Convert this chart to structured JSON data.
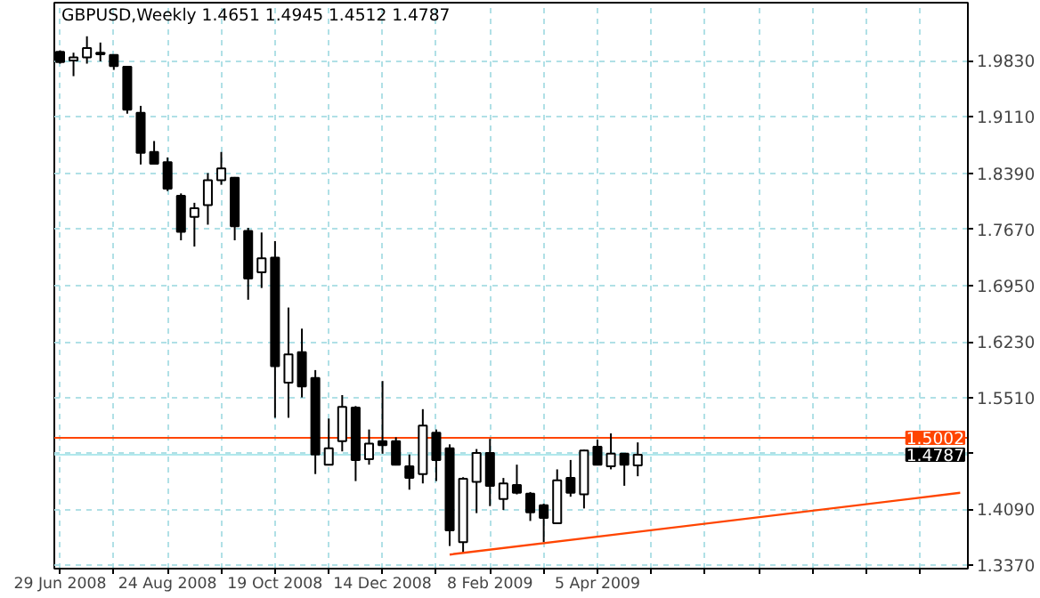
{
  "chart_data": {
    "type": "candlestick",
    "title": "GBPUSD,Weekly  1.4651 1.4945 1.4512 1.4787",
    "x": [
      "2008-06-29",
      "2008-07-06",
      "2008-07-13",
      "2008-07-20",
      "2008-07-27",
      "2008-08-03",
      "2008-08-10",
      "2008-08-17",
      "2008-08-24",
      "2008-08-31",
      "2008-09-07",
      "2008-09-14",
      "2008-09-21",
      "2008-09-28",
      "2008-10-05",
      "2008-10-12",
      "2008-10-19",
      "2008-10-26",
      "2008-11-02",
      "2008-11-09",
      "2008-11-16",
      "2008-11-23",
      "2008-11-30",
      "2008-12-07",
      "2008-12-14",
      "2008-12-21",
      "2008-12-28",
      "2009-01-04",
      "2009-01-11",
      "2009-01-18",
      "2009-01-25",
      "2009-02-01",
      "2009-02-08",
      "2009-02-15",
      "2009-02-22",
      "2009-03-01",
      "2009-03-08",
      "2009-03-15",
      "2009-03-22",
      "2009-03-29",
      "2009-04-05",
      "2009-04-12",
      "2009-04-19",
      "2009-04-26"
    ],
    "ohlc": [
      [
        1.994,
        1.996,
        1.979,
        1.981
      ],
      [
        1.983,
        1.993,
        1.963,
        1.987
      ],
      [
        1.987,
        2.014,
        1.979,
        1.999
      ],
      [
        1.993,
        2.006,
        1.982,
        1.991
      ],
      [
        1.99,
        1.991,
        1.971,
        1.976
      ],
      [
        1.975,
        1.976,
        1.915,
        1.92
      ],
      [
        1.916,
        1.925,
        1.85,
        1.865
      ],
      [
        1.866,
        1.88,
        1.85,
        1.851
      ],
      [
        1.853,
        1.859,
        1.816,
        1.819
      ],
      [
        1.81,
        1.813,
        1.753,
        1.764
      ],
      [
        1.783,
        1.801,
        1.745,
        1.794
      ],
      [
        1.798,
        1.839,
        1.773,
        1.83
      ],
      [
        1.83,
        1.866,
        1.824,
        1.845
      ],
      [
        1.833,
        1.834,
        1.753,
        1.771
      ],
      [
        1.765,
        1.769,
        1.677,
        1.704
      ],
      [
        1.712,
        1.763,
        1.692,
        1.73
      ],
      [
        1.731,
        1.752,
        1.526,
        1.592
      ],
      [
        1.571,
        1.667,
        1.526,
        1.607
      ],
      [
        1.61,
        1.64,
        1.552,
        1.566
      ],
      [
        1.577,
        1.587,
        1.454,
        1.479
      ],
      [
        1.466,
        1.525,
        1.465,
        1.487
      ],
      [
        1.496,
        1.555,
        1.483,
        1.54
      ],
      [
        1.539,
        1.541,
        1.445,
        1.472
      ],
      [
        1.473,
        1.511,
        1.466,
        1.493
      ],
      [
        1.496,
        1.573,
        1.48,
        1.491
      ],
      [
        1.496,
        1.501,
        1.465,
        1.466
      ],
      [
        1.464,
        1.479,
        1.434,
        1.449
      ],
      [
        1.454,
        1.537,
        1.442,
        1.516
      ],
      [
        1.507,
        1.511,
        1.445,
        1.472
      ],
      [
        1.487,
        1.492,
        1.362,
        1.382
      ],
      [
        1.367,
        1.45,
        1.353,
        1.448
      ],
      [
        1.444,
        1.486,
        1.404,
        1.481
      ],
      [
        1.481,
        1.499,
        1.413,
        1.439
      ],
      [
        1.422,
        1.449,
        1.408,
        1.442
      ],
      [
        1.44,
        1.466,
        1.428,
        1.43
      ],
      [
        1.429,
        1.431,
        1.394,
        1.405
      ],
      [
        1.414,
        1.416,
        1.367,
        1.398
      ],
      [
        1.391,
        1.46,
        1.39,
        1.446
      ],
      [
        1.449,
        1.472,
        1.425,
        1.43
      ],
      [
        1.428,
        1.485,
        1.41,
        1.484
      ],
      [
        1.489,
        1.498,
        1.465,
        1.466
      ],
      [
        1.464,
        1.506,
        1.46,
        1.48
      ],
      [
        1.48,
        1.481,
        1.439,
        1.466
      ],
      [
        1.4651,
        1.4945,
        1.4512,
        1.4787
      ]
    ],
    "series": [
      {
        "type": "line",
        "x": [
          "2009-01-18",
          "2009-10-11"
        ],
        "values": [
          1.351,
          1.43
        ],
        "color": "#ff4500"
      }
    ],
    "xlim": [
      "2008-06-26",
      "2009-10-15"
    ],
    "xticks": [
      {
        "value": "2008-06-29",
        "label": "29 Jun 2008"
      },
      {
        "value": "2008-07-27",
        "label": null
      },
      {
        "value": "2008-08-24",
        "label": "24 Aug 2008"
      },
      {
        "value": "2008-09-21",
        "label": null
      },
      {
        "value": "2008-10-19",
        "label": "19 Oct 2008"
      },
      {
        "value": "2008-11-16",
        "label": null
      },
      {
        "value": "2008-12-14",
        "label": "14 Dec 2008"
      },
      {
        "value": "2009-01-11",
        "label": null
      },
      {
        "value": "2009-02-08",
        "label": "8 Feb 2009"
      },
      {
        "value": "2009-03-08",
        "label": null
      },
      {
        "value": "2009-04-05",
        "label": "5 Apr 2009"
      },
      {
        "value": "2009-05-03",
        "label": null
      },
      {
        "value": "2009-05-31",
        "label": null
      },
      {
        "value": "2009-06-28",
        "label": null
      },
      {
        "value": "2009-07-26",
        "label": null
      },
      {
        "value": "2009-08-23",
        "label": null
      },
      {
        "value": "2009-09-20",
        "label": null
      }
    ],
    "ylim": [
      1.333,
      2.057
    ],
    "yticks": [
      {
        "value": 1.337,
        "label": "1.3370"
      },
      {
        "value": 1.409,
        "label": "1.4090"
      },
      {
        "value": 1.481,
        "label": null
      },
      {
        "value": 1.551,
        "label": "1.5510"
      },
      {
        "value": 1.623,
        "label": "1.6230"
      },
      {
        "value": 1.695,
        "label": "1.6950"
      },
      {
        "value": 1.767,
        "label": "1.7670"
      },
      {
        "value": 1.839,
        "label": "1.8390"
      },
      {
        "value": 1.911,
        "label": "1.9110"
      },
      {
        "value": 1.983,
        "label": "1.9830"
      }
    ],
    "ref_lines": [
      {
        "axis": "y",
        "value": 1.5002,
        "label": "1.5002",
        "color": "#ff4500"
      },
      {
        "axis": "y",
        "value": 1.4787,
        "label": "1.4787",
        "color": "#b0e8ec"
      }
    ],
    "grid": true
  }
}
